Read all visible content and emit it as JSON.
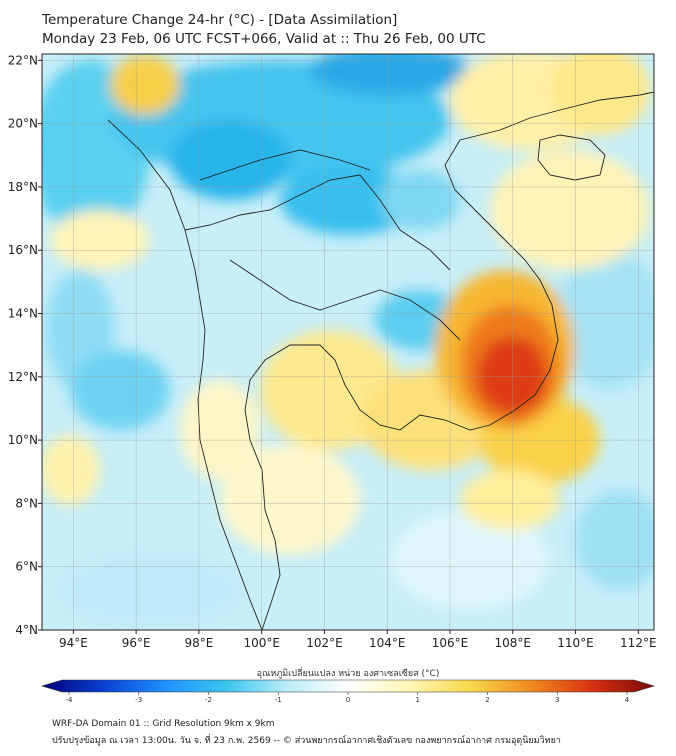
{
  "title": {
    "line1": "Temperature Change 24-hr (°C) - [Data Assimilation]",
    "line2": "Monday 23 Feb, 06 UTC FCST+066, Valid at :: Thu 26 Feb, 00 UTC"
  },
  "map": {
    "lon_range": [
      93,
      112.5
    ],
    "lat_range": [
      4,
      22.2
    ],
    "lon_ticks": [
      94,
      96,
      98,
      100,
      102,
      104,
      106,
      108,
      110,
      112
    ],
    "lat_ticks": [
      4,
      6,
      8,
      10,
      12,
      14,
      16,
      18,
      20,
      22
    ],
    "lon_tick_labels": [
      "94°E",
      "96°E",
      "98°E",
      "100°E",
      "102°E",
      "104°E",
      "106°E",
      "108°E",
      "110°E",
      "112°E"
    ],
    "lat_tick_labels": [
      "4°N",
      "6°N",
      "8°N",
      "10°N",
      "12°N",
      "14°N",
      "16°N",
      "18°N",
      "20°N",
      "22°N"
    ],
    "gridlines": true
  },
  "colorbar": {
    "label": "อุณหภูมิเปลี่ยนแปลง หน่วย องศาเซลเซียส (°C)",
    "range": [
      -4,
      4
    ],
    "ticks": [
      -4,
      -3,
      -2,
      -1,
      0,
      1,
      2,
      3,
      4
    ],
    "tick_labels": [
      "-4",
      "-3",
      "-2",
      "-1",
      "0",
      "1",
      "2",
      "3",
      "4"
    ],
    "colors": [
      "#00007a",
      "#0a3fd0",
      "#1e90ff",
      "#39c5ee",
      "#b9ecf7",
      "#ffffff",
      "#fff6b5",
      "#f7d84a",
      "#f08a1e",
      "#d82f10",
      "#7a0a0a"
    ]
  },
  "footer": {
    "line1": "WRF-DA Domain 01 :: Grid Resolution 9km x 9km",
    "line2": "ปรับปรุงข้อมูล ณ เวลา 13:00น. วัน จ. ที่ 23 ก.พ. 2569 -- © ส่วนพยากรณ์อากาศเชิงตัวเลข กองพยากรณ์อากาศ กรมอุตุนิยมวิทยา"
  }
}
